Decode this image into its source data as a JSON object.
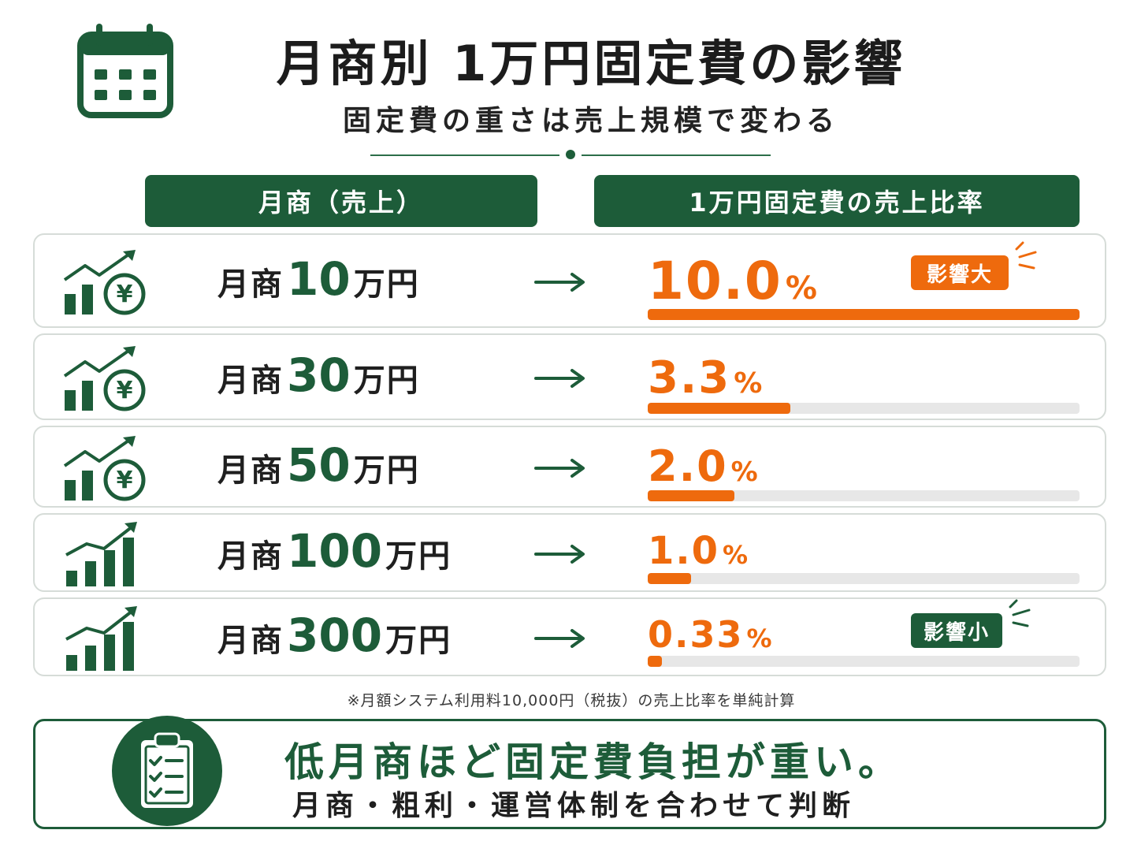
{
  "header": {
    "title": "月商別 1万円固定費の影響",
    "subtitle": "固定費の重さは売上規模で変わる"
  },
  "columns": {
    "left": "月商（売上）",
    "right": "1万円固定費の売上比率"
  },
  "rows": [
    {
      "prefix": "月商",
      "amount": "10",
      "suffix": "万円",
      "percent": "10.0",
      "unit": "%",
      "badge": "影響大",
      "icon": "chart-yen-icon"
    },
    {
      "prefix": "月商",
      "amount": "30",
      "suffix": "万円",
      "percent": "3.3",
      "unit": "%",
      "icon": "chart-yen-icon"
    },
    {
      "prefix": "月商",
      "amount": "50",
      "suffix": "万円",
      "percent": "2.0",
      "unit": "%",
      "icon": "chart-yen-icon"
    },
    {
      "prefix": "月商",
      "amount": "100",
      "suffix": "万円",
      "percent": "1.0",
      "unit": "%",
      "icon": "bar-chart-icon"
    },
    {
      "prefix": "月商",
      "amount": "300",
      "suffix": "万円",
      "percent": "0.33",
      "unit": "%",
      "badge": "影響小",
      "icon": "bar-chart-icon"
    }
  ],
  "chart_data": {
    "type": "bar",
    "categories": [
      "月商10万円",
      "月商30万円",
      "月商50万円",
      "月商100万円",
      "月商300万円"
    ],
    "values": [
      10.0,
      3.3,
      2.0,
      1.0,
      0.33
    ],
    "title": "月商別 1万円固定費の影響",
    "ylabel": "1万円固定費の売上比率",
    "ylim": [
      0,
      10
    ]
  },
  "note": "※月額システム利用料10,000円（税抜）の売上比率を単純計算",
  "summary": {
    "main": "低月商ほど固定費負担が重い。",
    "sub": "月商・粗利・運営体制を合わせて判断"
  },
  "colors": {
    "green": "#1d5c39",
    "orange": "#ee6a0d",
    "track": "#e7e7e7"
  },
  "icons": {
    "header": "calendar-icon",
    "summary": "clipboard-checklist-icon",
    "arrow": "arrow-right-icon"
  }
}
